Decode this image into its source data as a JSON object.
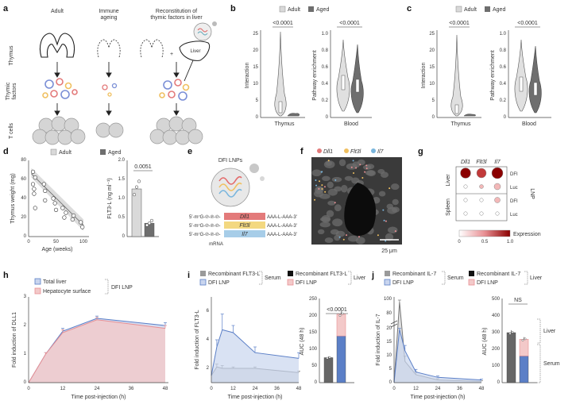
{
  "panels": {
    "a": {
      "label": "a",
      "columns": [
        "Adult",
        "Immune\nageing",
        "Reconstitution of\nthymic factors in liver"
      ],
      "rows": [
        "Thymus",
        "Thymic\nfactors",
        "T cells"
      ],
      "liver_label": "Liver",
      "plus": "+"
    },
    "b": {
      "label": "b",
      "legend": [
        "Adult",
        "Aged"
      ],
      "pvalue_left": "<0.0001",
      "pvalue_right": "<0.0001",
      "ylabel_left": "Interaction",
      "ylabel_right": "Pathway enrichment",
      "xlabel_left": "Thymus",
      "xlabel_right": "Blood",
      "yticks_left": [
        "0",
        "5",
        "10",
        "15",
        "20",
        "25"
      ],
      "yticks_right": [
        "0",
        "0.2",
        "0.4",
        "0.6",
        "0.8",
        "1.0"
      ]
    },
    "c": {
      "label": "c",
      "legend": [
        "Adult",
        "Aged"
      ],
      "pvalue_left": "<0.0001",
      "pvalue_right": "<0.0001",
      "ylabel_left": "Interaction",
      "ylabel_right": "Pathway enrichment",
      "xlabel_left": "Thymus",
      "xlabel_right": "Blood",
      "yticks_left": [
        "0",
        "5",
        "10",
        "15",
        "20",
        "25"
      ],
      "yticks_right": [
        "0",
        "0.2",
        "0.4",
        "0.6",
        "0.8",
        "1.0"
      ]
    },
    "d": {
      "label": "d",
      "legend": [
        "Adult",
        "Aged"
      ],
      "pvalue": "0.0051",
      "ylabel_left": "Thymus weight (mg)",
      "xlabel_left": "Age (weeks)",
      "xticks_left": [
        "0",
        "50",
        "100"
      ],
      "yticks_left": [
        "0",
        "20",
        "40",
        "60",
        "80"
      ],
      "ylabel_right": "FLT3-L (ng ml⁻¹)",
      "yticks_right": [
        "0",
        "0.5",
        "1.0",
        "1.5",
        "2.0"
      ]
    },
    "e": {
      "label": "e",
      "title": "DFI LNPs",
      "prefix": "5′-m⁷G-℗-℗-℗-",
      "genes": [
        "Dll1",
        "Flt3l",
        "Il7"
      ],
      "suffix": "AAA-L-AAA-3′",
      "mrna": "mRNA"
    },
    "f": {
      "label": "f",
      "legend": [
        "Dll1",
        "Flt3l",
        "Il7"
      ],
      "scale": "25 μm"
    },
    "g": {
      "label": "g",
      "columns": [
        "Dll1",
        "Flt3l",
        "Il7"
      ],
      "groups": [
        "Liver",
        "Spleen"
      ],
      "rows": [
        "DFI",
        "Luc",
        "DFI",
        "Luc"
      ],
      "side_label": "LNP",
      "colorbar_label": "Expression",
      "colorbar_ticks": [
        "0",
        "0.5",
        "1.0"
      ]
    },
    "h": {
      "label": "h",
      "legend": [
        "Total liver",
        "Hepatocyte surface"
      ],
      "group_label": "DFI LNP",
      "ylabel": "Fold induction of DLL1",
      "xlabel": "Time post-injection (h)",
      "xticks": [
        "0",
        "12",
        "24",
        "36",
        "48"
      ],
      "yticks": [
        "0",
        "1",
        "2",
        "3"
      ]
    },
    "i": {
      "label": "i",
      "legend_left": [
        "Recombinant FLT3-L",
        "DFI LNP"
      ],
      "group_left": "Serum",
      "legend_right": [
        "Recombinant FLT3-L",
        "DFI LNP"
      ],
      "group_right": "Liver",
      "ylabel": "Fold induction of FLT3-L",
      "xlabel": "Time post-injection (h)",
      "xticks": [
        "0",
        "12",
        "24",
        "36",
        "48"
      ],
      "yticks": [
        "2",
        "4",
        "6"
      ],
      "auc_ylabel": "AUC (48 h)",
      "auc_yticks": [
        "0",
        "50",
        "100",
        "150",
        "200",
        "250"
      ],
      "pvalue": "<0.0001"
    },
    "j": {
      "label": "j",
      "legend_left": [
        "Recombinant IL-7",
        "DFI LNP"
      ],
      "group_left": "Serum",
      "legend_right": [
        "Recombinant IL-7",
        "DFI LNP"
      ],
      "group_right": "Liver",
      "ylabel": "Fold induction of IL-7",
      "xlabel": "Time post-injection (h)",
      "xticks": [
        "0",
        "12",
        "24",
        "36",
        "48"
      ],
      "yticks": [
        "0",
        "5",
        "10",
        "15",
        "20",
        "80",
        "100"
      ],
      "auc_ylabel": "AUC (48 h)",
      "auc_yticks": [
        "0",
        "100",
        "200",
        "300",
        "400",
        "500"
      ],
      "ns": "NS",
      "stack_labels": [
        "Liver",
        "Serum"
      ]
    }
  },
  "chart_data": [
    {
      "type": "scatter",
      "panel": "d-left",
      "x": [
        8,
        8,
        10,
        10,
        12,
        12,
        28,
        30,
        30,
        45,
        48,
        50,
        62,
        65,
        68,
        80,
        82,
        95,
        98
      ],
      "y": [
        68,
        55,
        50,
        45,
        30,
        62,
        55,
        48,
        38,
        40,
        35,
        28,
        30,
        20,
        25,
        18,
        22,
        15,
        10
      ],
      "xlabel": "Age (weeks)",
      "ylabel": "Thymus weight (mg)",
      "xlim": [
        0,
        110
      ],
      "ylim": [
        0,
        80
      ]
    },
    {
      "type": "bar",
      "panel": "d-right",
      "categories": [
        "Adult",
        "Aged"
      ],
      "values": [
        1.25,
        0.35
      ],
      "points": [
        [
          1.1,
          1.3,
          1.45
        ],
        [
          0.3,
          0.35,
          0.42
        ]
      ],
      "ylabel": "FLT3-L (ng ml⁻¹)",
      "ylim": [
        0,
        2.0
      ]
    },
    {
      "type": "heatmap",
      "panel": "g",
      "columns": [
        "Dll1",
        "Flt3l",
        "Il7"
      ],
      "rows": [
        "Liver DFI",
        "Liver Luc",
        "Spleen DFI",
        "Spleen Luc"
      ],
      "values": [
        [
          0.9,
          0.8,
          1.0
        ],
        [
          0.05,
          0.1,
          0.4
        ],
        [
          0.05,
          0.05,
          0.3
        ],
        [
          0.05,
          0.05,
          0.05
        ]
      ]
    },
    {
      "type": "area",
      "panel": "h",
      "x": [
        0,
        6,
        12,
        24,
        48
      ],
      "series": [
        {
          "name": "Total liver",
          "values": [
            0,
            1.0,
            1.8,
            2.25,
            2.0
          ],
          "err": [
            0,
            0.05,
            0.1,
            0.08,
            0.1
          ]
        },
        {
          "name": "Hepatocyte surface",
          "values": [
            0,
            1.0,
            1.75,
            2.2,
            1.9
          ],
          "err": [
            0,
            0.05,
            0.1,
            0.08,
            0.1
          ]
        }
      ],
      "xlabel": "Time post-injection (h)",
      "ylabel": "Fold induction of DLL1",
      "xlim": [
        0,
        48
      ],
      "ylim": [
        0,
        3
      ]
    },
    {
      "type": "area",
      "panel": "i-left",
      "x": [
        0,
        3,
        6,
        12,
        24,
        48
      ],
      "series": [
        {
          "name": "Recombinant FLT3-L",
          "values": [
            1.0,
            1.6,
            1.5,
            1.5,
            1.5,
            1.2
          ],
          "err": [
            0,
            0.2,
            0.2,
            0.1,
            0.1,
            0.1
          ]
        },
        {
          "name": "DFI LNP",
          "values": [
            1.0,
            3.0,
            4.2,
            4.0,
            2.6,
            2.2
          ],
          "err": [
            0,
            0.5,
            1.1,
            0.5,
            0.4,
            0.4
          ]
        }
      ],
      "xlabel": "Time post-injection (h)",
      "ylabel": "Fold induction of FLT3-L",
      "xlim": [
        0,
        48
      ],
      "ylim": [
        1,
        7
      ]
    },
    {
      "type": "bar",
      "panel": "i-right",
      "categories": [
        "Recombinant FLT3-L",
        "DFI LNP"
      ],
      "series": [
        {
          "name": "Serum",
          "values": [
            75,
            140
          ]
        },
        {
          "name": "Liver",
          "values": [
            0,
            65
          ]
        }
      ],
      "ylabel": "AUC (48 h)",
      "ylim": [
        0,
        250
      ]
    },
    {
      "type": "area",
      "panel": "j-left",
      "x": [
        0,
        3,
        6,
        12,
        24,
        48
      ],
      "series": [
        {
          "name": "Recombinant IL-7",
          "values": [
            0,
            95,
            8,
            3,
            1,
            0.5
          ],
          "err": [
            0,
            5,
            2,
            1,
            0.5,
            0.2
          ]
        },
        {
          "name": "DFI LNP",
          "values": [
            0,
            20,
            12,
            4,
            2,
            1
          ],
          "err": [
            0,
            3,
            2,
            1,
            0.5,
            0.3
          ]
        }
      ],
      "xlabel": "Time post-injection (h)",
      "ylabel": "Fold induction of IL-7",
      "xlim": [
        0,
        48
      ],
      "ylim": [
        0,
        100
      ]
    },
    {
      "type": "bar",
      "panel": "j-right",
      "categories": [
        "Recombinant IL-7",
        "DFI LNP"
      ],
      "series": [
        {
          "name": "Serum",
          "values": [
            300,
            160
          ]
        },
        {
          "name": "Liver",
          "values": [
            0,
            100
          ]
        }
      ],
      "ylabel": "AUC (48 h)",
      "ylim": [
        0,
        500
      ]
    }
  ],
  "colors": {
    "adult": "#d9d9d9",
    "aged": "#6e6e6e",
    "blue": "#5b7fc7",
    "blue_fill": "#c9d5ee",
    "pink": "#e88f93",
    "pink_fill": "#f3c9c9",
    "dark_red": "#8b0000",
    "dark_gray": "#555555"
  }
}
